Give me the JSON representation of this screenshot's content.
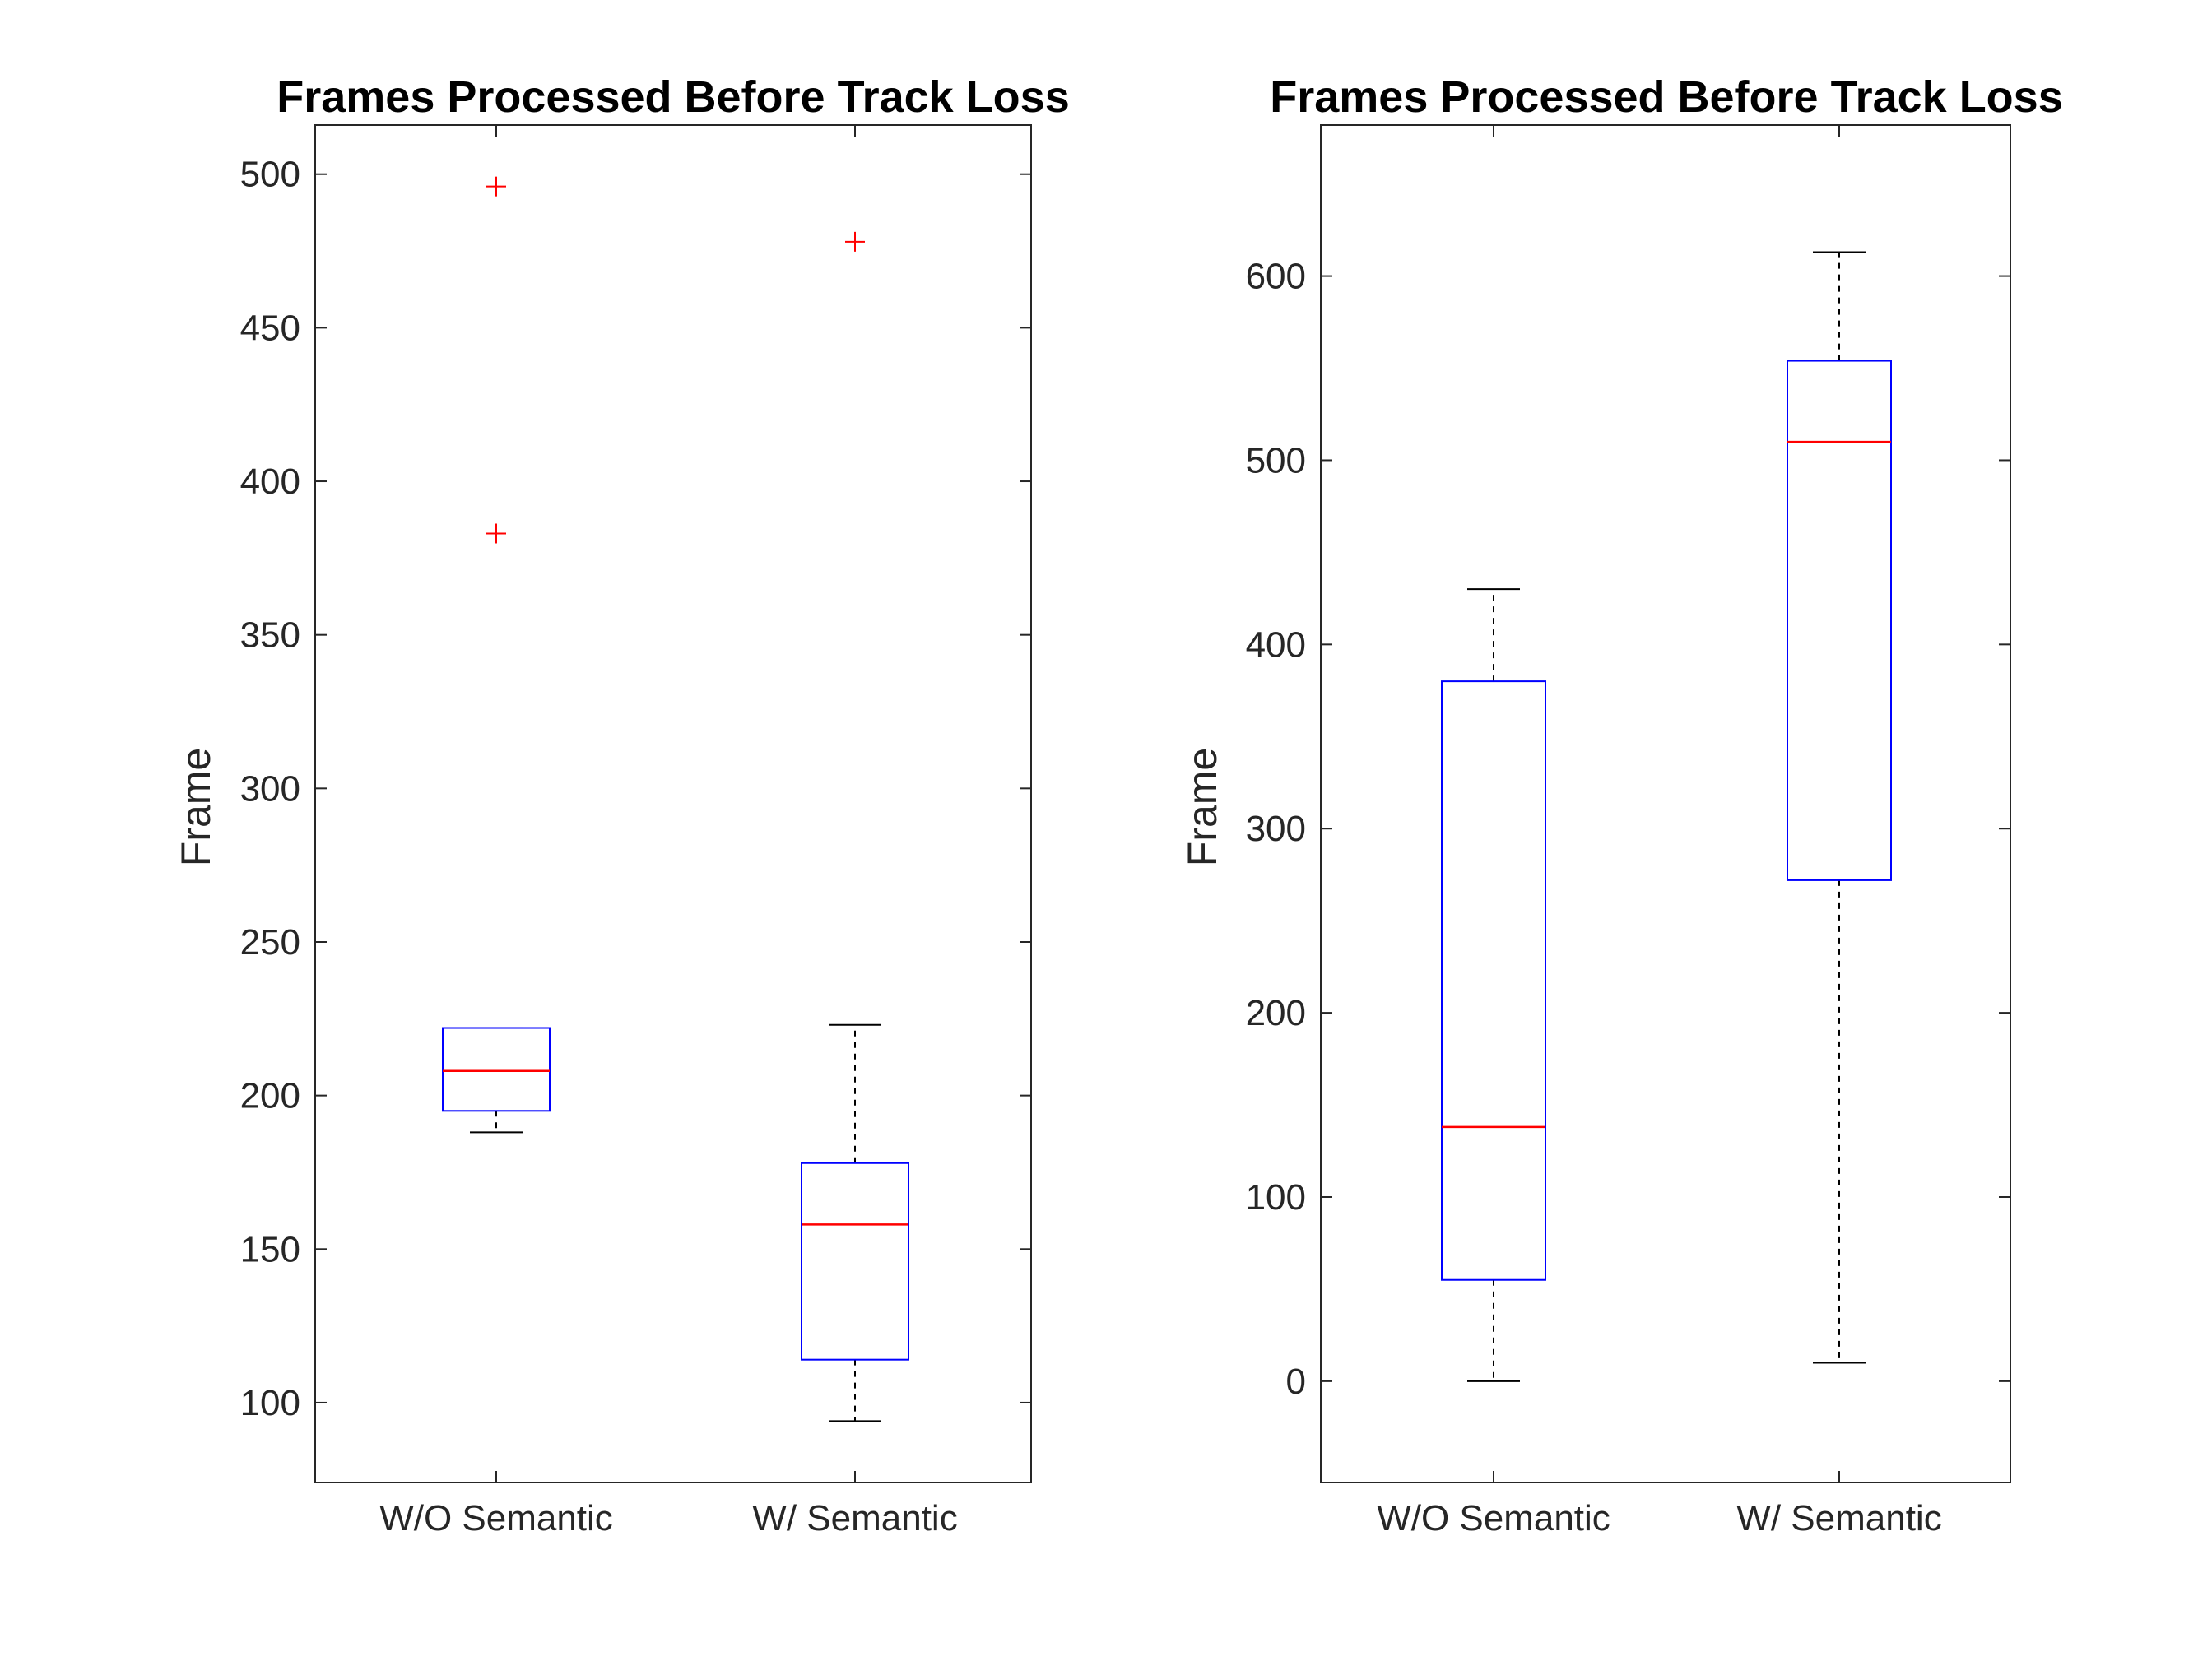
{
  "chart_data": [
    {
      "type": "boxplot",
      "title": "Frames Processed Before Track Loss",
      "xlabel": "",
      "ylabel": "Frame",
      "ylim": [
        74,
        516
      ],
      "yticks": [
        100,
        150,
        200,
        250,
        300,
        350,
        400,
        450,
        500
      ],
      "categories": [
        "W/O Semantic",
        "W/ Semantic"
      ],
      "boxes": [
        {
          "name": "W/O Semantic",
          "whisker_low": 188,
          "q1": 195,
          "median": 208,
          "q3": 222,
          "whisker_high": 222,
          "outliers": [
            383,
            496
          ]
        },
        {
          "name": "W/ Semantic",
          "whisker_low": 94,
          "q1": 114,
          "median": 158,
          "q3": 178,
          "whisker_high": 223,
          "outliers": [
            478
          ]
        }
      ],
      "colors": {
        "box": "#0000ff",
        "median": "#ff0000",
        "whisker": "#000000",
        "outlier": "#ff0000",
        "axis": "#262626"
      }
    },
    {
      "type": "boxplot",
      "title": "Frames Processed Before Track Loss",
      "xlabel": "",
      "ylabel": "Frame",
      "ylim": [
        -55,
        682
      ],
      "yticks": [
        0,
        100,
        200,
        300,
        400,
        500,
        600
      ],
      "categories": [
        "W/O Semantic",
        "W/ Semantic"
      ],
      "boxes": [
        {
          "name": "W/O Semantic",
          "whisker_low": 0,
          "q1": 55,
          "median": 138,
          "q3": 380,
          "whisker_high": 430,
          "outliers": []
        },
        {
          "name": "W/ Semantic",
          "whisker_low": 10,
          "q1": 272,
          "median": 510,
          "q3": 554,
          "whisker_high": 613,
          "outliers": []
        }
      ],
      "colors": {
        "box": "#0000ff",
        "median": "#ff0000",
        "whisker": "#000000",
        "outlier": "#ff0000",
        "axis": "#262626"
      }
    }
  ]
}
